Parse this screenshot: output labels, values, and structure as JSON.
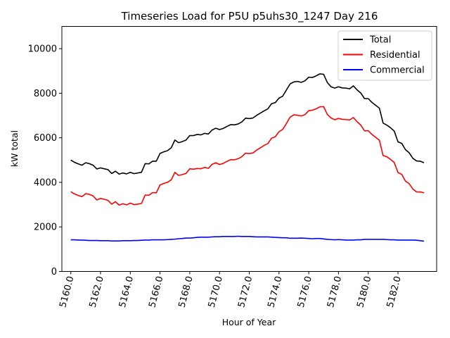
{
  "chart_data": {
    "type": "line",
    "title": "Timeseries Load for P5U p5uhs30_1247  Day 216",
    "xlabel": "Hour of Year",
    "ylabel": "kW total",
    "xlim": [
      5159.4,
      5184.6
    ],
    "ylim": [
      0,
      11000
    ],
    "xticks": [
      5160,
      5162,
      5164,
      5166,
      5168,
      5170,
      5172,
      5174,
      5176,
      5178,
      5180,
      5182
    ],
    "xtick_labels": [
      "5160.0",
      "5162.0",
      "5164.0",
      "5166.0",
      "5168.0",
      "5170.0",
      "5172.0",
      "5174.0",
      "5176.0",
      "5178.0",
      "5180.0",
      "5182.0"
    ],
    "yticks": [
      0,
      2000,
      4000,
      6000,
      8000,
      10000
    ],
    "ytick_labels": [
      "0",
      "2000",
      "4000",
      "6000",
      "8000",
      "10000"
    ],
    "legend_position": "top-right",
    "x_start": 5160,
    "x_step": 0.25,
    "series": [
      {
        "name": "Total",
        "color": "#000000",
        "values": [
          5000,
          4900,
          4830,
          4770,
          4880,
          4840,
          4770,
          4600,
          4650,
          4610,
          4570,
          4400,
          4500,
          4370,
          4420,
          4380,
          4450,
          4390,
          4420,
          4450,
          4840,
          4830,
          4950,
          4950,
          5300,
          5370,
          5420,
          5550,
          5900,
          5780,
          5830,
          5900,
          6100,
          6100,
          6150,
          6130,
          6200,
          6170,
          6350,
          6430,
          6370,
          6420,
          6510,
          6590,
          6580,
          6620,
          6710,
          6880,
          6860,
          6890,
          7010,
          7110,
          7210,
          7300,
          7530,
          7580,
          7780,
          7870,
          8150,
          8420,
          8510,
          8530,
          8490,
          8560,
          8720,
          8710,
          8780,
          8870,
          8850,
          8480,
          8290,
          8230,
          8290,
          8240,
          8230,
          8200,
          8330,
          8150,
          8010,
          7760,
          7760,
          7590,
          7460,
          7330,
          6660,
          6570,
          6450,
          6300,
          5820,
          5750,
          5470,
          5330,
          5080,
          4960,
          4950,
          4880
        ]
      },
      {
        "name": "Residential",
        "color": "#ff0000",
        "values": [
          3580,
          3480,
          3410,
          3360,
          3490,
          3460,
          3390,
          3210,
          3280,
          3240,
          3190,
          3020,
          3130,
          2980,
          3040,
          2990,
          3070,
          3000,
          3020,
          3050,
          3430,
          3420,
          3540,
          3530,
          3880,
          3950,
          4000,
          4110,
          4450,
          4310,
          4350,
          4400,
          4610,
          4590,
          4620,
          4610,
          4670,
          4630,
          4810,
          4880,
          4800,
          4850,
          4940,
          5020,
          5010,
          5060,
          5150,
          5310,
          5290,
          5320,
          5450,
          5550,
          5660,
          5740,
          5980,
          6050,
          6270,
          6380,
          6640,
          6930,
          7030,
          7010,
          6980,
          7040,
          7220,
          7240,
          7300,
          7390,
          7400,
          7050,
          6890,
          6810,
          6870,
          6830,
          6820,
          6800,
          6910,
          6720,
          6570,
          6310,
          6320,
          6150,
          6020,
          5890,
          5200,
          5150,
          5030,
          4890,
          4440,
          4360,
          4060,
          3940,
          3700,
          3570,
          3570,
          3530
        ]
      },
      {
        "name": "Commercial",
        "color": "#0000ff",
        "values": [
          1420,
          1420,
          1410,
          1410,
          1400,
          1390,
          1390,
          1390,
          1380,
          1380,
          1380,
          1370,
          1370,
          1370,
          1380,
          1380,
          1380,
          1390,
          1390,
          1400,
          1410,
          1410,
          1420,
          1420,
          1420,
          1420,
          1430,
          1440,
          1450,
          1470,
          1480,
          1500,
          1500,
          1510,
          1530,
          1540,
          1540,
          1540,
          1550,
          1560,
          1560,
          1570,
          1570,
          1570,
          1570,
          1580,
          1570,
          1570,
          1570,
          1560,
          1550,
          1550,
          1550,
          1550,
          1540,
          1530,
          1520,
          1510,
          1510,
          1490,
          1490,
          1490,
          1500,
          1490,
          1480,
          1470,
          1480,
          1480,
          1460,
          1440,
          1430,
          1420,
          1430,
          1420,
          1410,
          1410,
          1410,
          1420,
          1420,
          1440,
          1440,
          1440,
          1440,
          1440,
          1440,
          1430,
          1420,
          1420,
          1410,
          1410,
          1410,
          1410,
          1410,
          1400,
          1380,
          1360
        ]
      }
    ]
  }
}
